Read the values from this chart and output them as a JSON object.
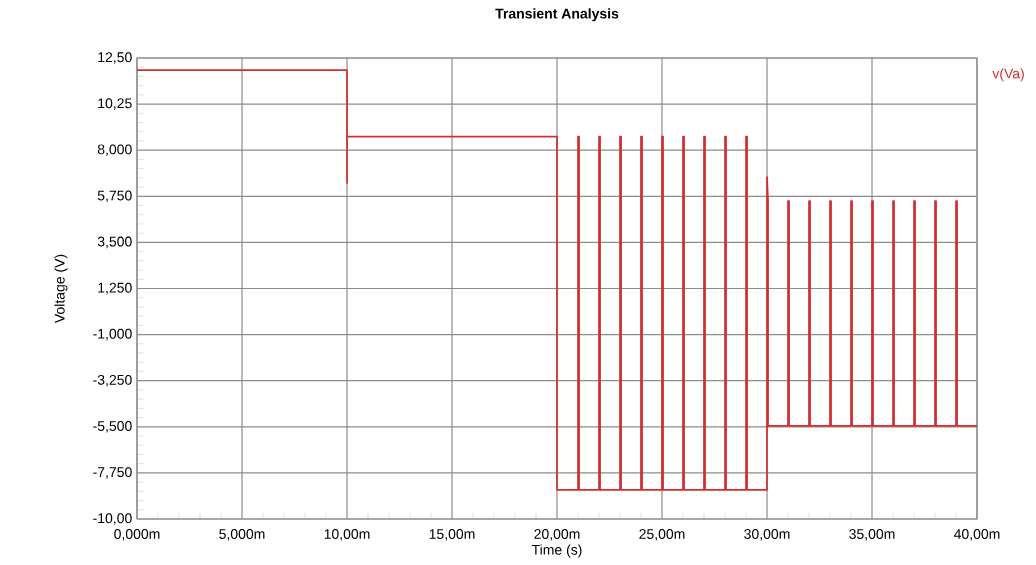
{
  "chart_data": {
    "type": "line",
    "title": "Transient Analysis",
    "xlabel": "Time (s)",
    "ylabel": "Voltage (V)",
    "x": [
      0,
      10,
      10,
      10,
      20,
      20,
      21,
      21,
      21.05,
      21.05,
      22,
      22,
      22.05,
      22.05,
      23,
      23,
      23.05,
      23.05,
      24,
      24,
      24.05,
      24.05,
      25,
      25,
      25.05,
      25.05,
      26,
      26,
      26.05,
      26.05,
      27,
      27,
      27.05,
      27.05,
      28,
      28,
      28.05,
      28.05,
      29,
      29,
      29.05,
      29.05,
      30,
      30,
      30.05,
      30.05,
      31,
      31,
      31.05,
      31.05,
      32,
      32,
      32.05,
      32.05,
      33,
      33,
      33.05,
      33.05,
      34,
      34,
      34.05,
      34.05,
      35,
      35,
      35.05,
      35.05,
      36,
      36,
      36.05,
      36.05,
      37,
      37,
      37.05,
      37.05,
      38,
      38,
      38.05,
      38.05,
      39,
      39,
      39.05,
      39.05,
      40
    ],
    "series": [
      {
        "name": "v(Va)",
        "color": "#d03030",
        "values": [
          11.91,
          11.91,
          6.4,
          8.66,
          8.66,
          -8.58,
          -8.58,
          8.66,
          8.66,
          -8.58,
          -8.58,
          8.66,
          8.66,
          -8.58,
          -8.58,
          8.66,
          8.66,
          -8.58,
          -8.58,
          8.66,
          8.66,
          -8.58,
          -8.58,
          8.66,
          8.66,
          -8.58,
          -8.58,
          8.66,
          8.66,
          -8.58,
          -8.58,
          8.66,
          8.66,
          -8.58,
          -8.58,
          8.66,
          8.66,
          -8.58,
          -8.58,
          8.66,
          8.66,
          -8.58,
          -8.58,
          6.69,
          5.52,
          -5.46,
          -5.46,
          5.52,
          5.52,
          -5.46,
          -5.46,
          5.52,
          5.52,
          -5.46,
          -5.46,
          5.52,
          5.52,
          -5.46,
          -5.46,
          5.52,
          5.52,
          -5.46,
          -5.46,
          5.52,
          5.52,
          -5.46,
          -5.46,
          5.52,
          5.52,
          -5.46,
          -5.46,
          5.52,
          5.52,
          -5.46,
          -5.46,
          5.52,
          5.52,
          -5.46,
          -5.46,
          5.52,
          5.52,
          -5.46,
          -5.46
        ]
      }
    ],
    "xlim": [
      0,
      40
    ],
    "ylim": [
      -10,
      12.5
    ],
    "xticks": [
      {
        "value": 0,
        "label": "0,000m"
      },
      {
        "value": 5,
        "label": "5,000m"
      },
      {
        "value": 10,
        "label": "10,00m"
      },
      {
        "value": 15,
        "label": "15,00m"
      },
      {
        "value": 20,
        "label": "20,00m"
      },
      {
        "value": 25,
        "label": "25,00m"
      },
      {
        "value": 30,
        "label": "30,00m"
      },
      {
        "value": 35,
        "label": "35,00m"
      },
      {
        "value": 40,
        "label": "40,00m"
      }
    ],
    "yticks": [
      {
        "value": -10,
        "label": "-10,00"
      },
      {
        "value": -7.75,
        "label": "-7,750"
      },
      {
        "value": -5.5,
        "label": "-5,500"
      },
      {
        "value": -3.25,
        "label": "-3,250"
      },
      {
        "value": -1,
        "label": "-1,000"
      },
      {
        "value": 1.25,
        "label": "1,250"
      },
      {
        "value": 3.5,
        "label": "3,500"
      },
      {
        "value": 5.75,
        "label": "5,750"
      },
      {
        "value": 8,
        "label": "8,000"
      },
      {
        "value": 10.25,
        "label": "10,25"
      },
      {
        "value": 12.5,
        "label": "12,50"
      }
    ],
    "grid": true,
    "legend": "top right"
  }
}
